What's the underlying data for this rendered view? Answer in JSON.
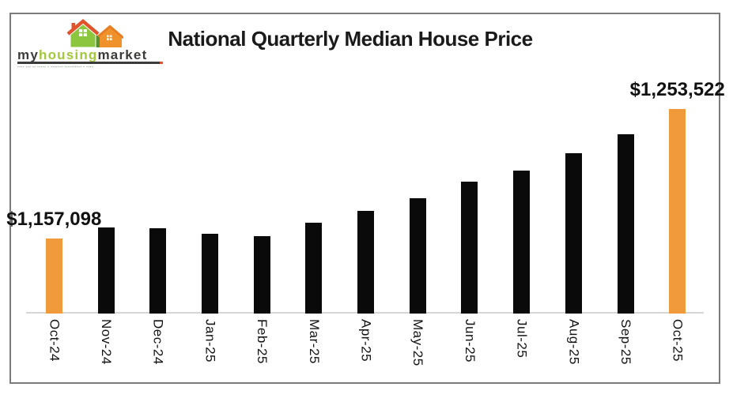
{
  "logo": {
    "brand_prefix": "my",
    "brand_mid": "housing",
    "brand_suffix": "market",
    "tagline": "▪▪▪▪ ▪▪▪ ▪▪ ▪▪▪▪▪ ▪ ▪▪▪▪▪▪▪ ▪▪▪▪▪▪▪▪▪▪ ▪ ▪▪▪▪",
    "colors": {
      "house_green": "#8cc63f",
      "house_dark_green": "#56912f",
      "house_orange": "#f0922b",
      "roof_red": "#e0532c",
      "text_dark": "#3b3b3a",
      "text_green": "#a3c83c"
    }
  },
  "chart_data": {
    "type": "bar",
    "title": "National Quarterly Median House Price",
    "categories": [
      "Oct-24",
      "Nov-24",
      "Dec-24",
      "Jan-25",
      "Feb-25",
      "Mar-25",
      "Apr-25",
      "May-25",
      "Jun-25",
      "Jul-25",
      "Aug-25",
      "Sep-25",
      "Oct-25"
    ],
    "values": [
      1157098,
      1165000,
      1164700,
      1160400,
      1158700,
      1168900,
      1177700,
      1187100,
      1199300,
      1207700,
      1220800,
      1234900,
      1253522
    ],
    "data_labels": {
      "0": "$1,157,098",
      "12": "$1,253,522"
    },
    "bar_default_color": "#0a0a0a",
    "highlight_color": "#f09a3c",
    "highlighted_indices": [
      0,
      12
    ],
    "ylim": [
      1101000,
      1300000
    ],
    "xlabel_rotation_deg": 90,
    "grid": false,
    "legend": "none",
    "axis_line_color": "#d6d6d6"
  }
}
